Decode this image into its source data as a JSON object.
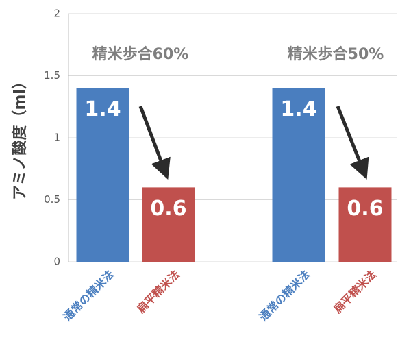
{
  "chart_data": {
    "type": "bar",
    "y_label": "アミノ酸度（ml）",
    "categories": [
      "通常の精米法",
      "扁平精米法",
      "通常の精米法",
      "扁平精米法"
    ],
    "values": [
      1.4,
      0.6,
      1.4,
      0.6
    ],
    "colors": [
      "#4a7ebf",
      "#c0504d",
      "#4a7ebf",
      "#c0504d"
    ],
    "annotations": [
      "精米歩合60%",
      "精米歩合50%"
    ],
    "ylim": [
      0,
      2
    ],
    "yticks": [
      0,
      0.5,
      1,
      1.5,
      2
    ],
    "grid": true
  }
}
